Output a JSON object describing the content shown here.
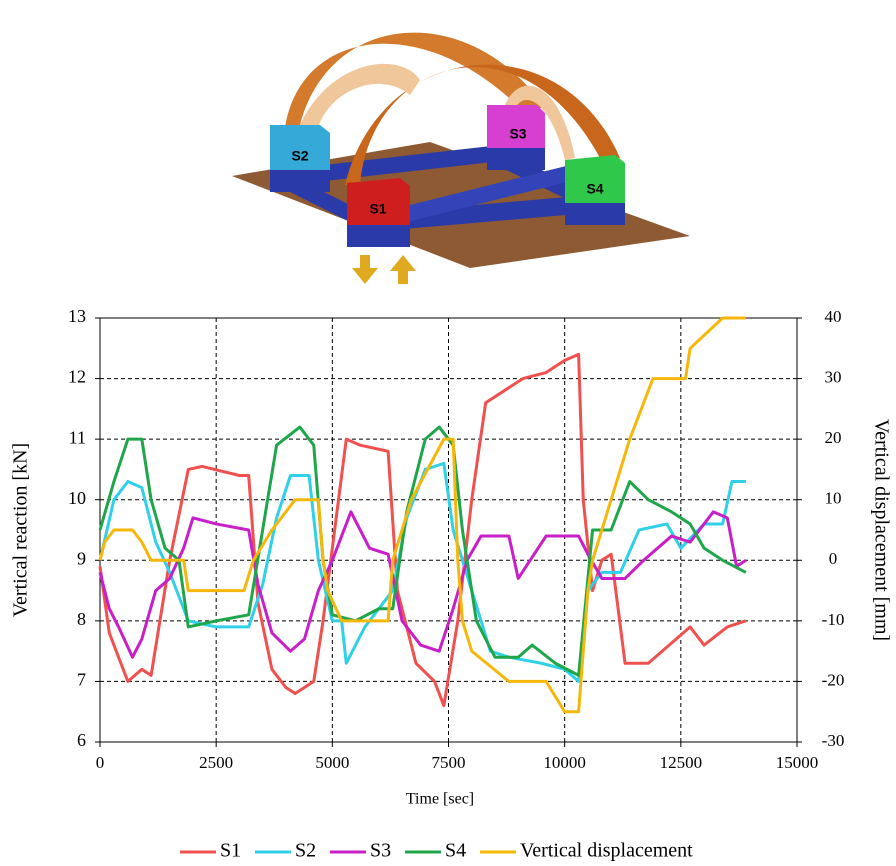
{
  "illustration": {
    "supports": [
      "S1",
      "S2",
      "S3",
      "S4"
    ]
  },
  "chart_data": {
    "type": "line",
    "xlabel": "Time  [sec]",
    "ylabel": "Vertical  reaction [kN]",
    "y2label": "Vertical  displacement [mm]",
    "xlim": [
      0,
      15000
    ],
    "xticks": [
      0,
      2500,
      5000,
      7500,
      10000,
      12500,
      15000
    ],
    "ylim": [
      6,
      13
    ],
    "yticks": [
      6,
      7,
      8,
      9,
      10,
      11,
      12,
      13
    ],
    "y2lim": [
      -30,
      40
    ],
    "y2ticks": [
      -30,
      -20,
      -10,
      0,
      10,
      20,
      30,
      40
    ],
    "grid": true,
    "legend": "bottom",
    "series": [
      {
        "name": "S1",
        "color": "#f0514f",
        "x": [
          0,
          200,
          600,
          900,
          1100,
          1500,
          1900,
          2200,
          3000,
          3200,
          3400,
          3700,
          4000,
          4200,
          4600,
          4800,
          5100,
          5300,
          5600,
          6200,
          6400,
          6800,
          7200,
          7400,
          7700,
          8000,
          8300,
          8700,
          9100,
          9600,
          10000,
          10300,
          10400,
          10600,
          10800,
          11000,
          11300,
          11800,
          12400,
          12700,
          13000,
          13500,
          13900
        ],
        "values": [
          8.9,
          7.8,
          7.0,
          7.2,
          7.1,
          9.0,
          10.5,
          10.55,
          10.4,
          10.4,
          8.3,
          7.2,
          6.9,
          6.8,
          7.0,
          8.0,
          9.8,
          11.0,
          10.9,
          10.8,
          8.5,
          7.3,
          7.0,
          6.6,
          8.0,
          10.0,
          11.6,
          11.8,
          12.0,
          12.1,
          12.3,
          12.4,
          10.0,
          8.5,
          9.0,
          9.1,
          7.3,
          7.3,
          7.7,
          7.9,
          7.6,
          7.9,
          8.0
        ]
      },
      {
        "name": "S2",
        "color": "#2fd0e8",
        "x": [
          0,
          300,
          600,
          900,
          1200,
          1500,
          1900,
          2500,
          3200,
          3500,
          3800,
          4100,
          4500,
          4700,
          5000,
          5200,
          5300,
          5700,
          6300,
          6600,
          7000,
          7400,
          7600,
          8000,
          8400,
          8800,
          9500,
          10000,
          10300,
          10500,
          10800,
          11200,
          11600,
          12200,
          12500,
          13000,
          13400,
          13600,
          13900
        ],
        "values": [
          9.0,
          10.0,
          10.3,
          10.2,
          9.3,
          8.8,
          8.0,
          7.9,
          7.9,
          8.6,
          9.7,
          10.4,
          10.4,
          9.0,
          8.0,
          8.0,
          7.3,
          7.9,
          8.5,
          9.7,
          10.5,
          10.6,
          9.5,
          8.5,
          7.5,
          7.4,
          7.3,
          7.2,
          7.0,
          8.5,
          8.8,
          8.8,
          9.5,
          9.6,
          9.2,
          9.6,
          9.6,
          10.3,
          10.3
        ]
      },
      {
        "name": "S3",
        "color": "#c81fc8",
        "x": [
          0,
          200,
          400,
          700,
          900,
          1200,
          1500,
          1800,
          2000,
          2500,
          3200,
          3400,
          3700,
          4100,
          4400,
          4700,
          5000,
          5400,
          5800,
          6200,
          6500,
          6900,
          7300,
          7600,
          7900,
          8200,
          8800,
          9000,
          9600,
          10300,
          10500,
          10800,
          11300,
          11700,
          12300,
          12700,
          13200,
          13500,
          13700,
          13900
        ],
        "values": [
          8.8,
          8.2,
          7.9,
          7.4,
          7.7,
          8.5,
          8.7,
          9.2,
          9.7,
          9.6,
          9.5,
          8.6,
          7.8,
          7.5,
          7.7,
          8.5,
          9.0,
          9.8,
          9.2,
          9.1,
          8.0,
          7.6,
          7.5,
          8.2,
          9.0,
          9.4,
          9.4,
          8.7,
          9.4,
          9.4,
          9.1,
          8.7,
          8.7,
          9.0,
          9.4,
          9.3,
          9.8,
          9.7,
          8.9,
          9.0
        ]
      },
      {
        "name": "S4",
        "color": "#1fa64a",
        "x": [
          0,
          300,
          600,
          900,
          1100,
          1400,
          1700,
          1900,
          2500,
          3200,
          3500,
          3800,
          4300,
          4600,
          4800,
          5000,
          5500,
          6000,
          6300,
          6600,
          7000,
          7300,
          7600,
          7800,
          8100,
          8500,
          9000,
          9300,
          9800,
          10300,
          10600,
          11000,
          11400,
          11800,
          12300,
          12700,
          13000,
          13400,
          13900
        ],
        "values": [
          9.5,
          10.3,
          11.0,
          11.0,
          10.0,
          9.2,
          9.0,
          7.9,
          8.0,
          8.1,
          9.5,
          10.9,
          11.2,
          10.9,
          9.0,
          8.1,
          8.0,
          8.2,
          8.2,
          9.8,
          11.0,
          11.2,
          10.9,
          9.5,
          8.0,
          7.4,
          7.4,
          7.6,
          7.3,
          7.1,
          9.5,
          9.5,
          10.3,
          10.0,
          9.8,
          9.6,
          9.2,
          9.0,
          8.8
        ]
      },
      {
        "name": "Vertical displacement",
        "color": "#f5b70a",
        "axis": "y2",
        "x": [
          0,
          100,
          300,
          700,
          900,
          1100,
          1800,
          1900,
          3100,
          3300,
          3700,
          4200,
          4700,
          4800,
          4900,
          5200,
          6200,
          6300,
          6700,
          7400,
          7600,
          7700,
          7800,
          8000,
          8800,
          9600,
          10000,
          10300,
          10500,
          10600,
          11000,
          11400,
          11900,
          12600,
          12700,
          13400,
          13900
        ],
        "values": [
          0,
          3,
          5,
          5,
          3,
          0,
          0,
          -5,
          -5,
          0,
          5,
          10,
          10,
          0,
          -5,
          -10,
          -10,
          0,
          10,
          20,
          20,
          0,
          -10,
          -15,
          -20,
          -20,
          -25,
          -25,
          -5,
          0,
          10,
          20,
          30,
          30,
          35,
          40,
          40
        ]
      }
    ]
  }
}
